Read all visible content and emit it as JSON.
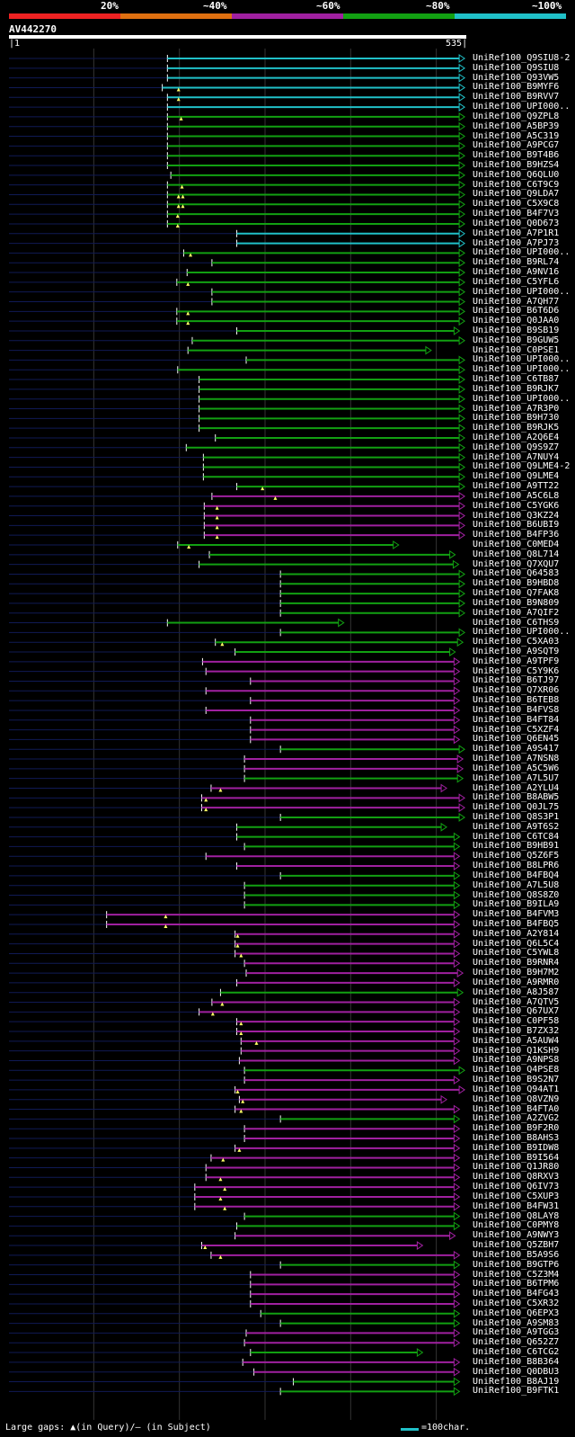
{
  "colors": {
    "red": "#ee2222",
    "orange": "#e07010",
    "purple": "#a020a0",
    "green": "#12a012",
    "cyan": "#20c0c8",
    "navy": "#101a55",
    "gap": "#ffff66"
  },
  "legend": {
    "percent_labels": [
      "20%",
      "~40%",
      "~60%",
      "~80%",
      "~100%"
    ],
    "segment_colors": [
      "#ee2222",
      "#e07010",
      "#a020a0",
      "#12a012",
      "#20c0c8"
    ]
  },
  "query": {
    "name": "AV442270",
    "start": "1",
    "end": "535",
    "length": 535
  },
  "footer": {
    "gap_note": "Large gaps: ▲(in Query)/– (in Subject)",
    "scale_text": "=100char."
  },
  "hits": [
    {
      "label": "UniRef100_Q9SIU8-2",
      "color": "cyan",
      "start": 186,
      "end": 533
    },
    {
      "label": "UniRef100_Q9SIU8",
      "color": "cyan",
      "start": 186,
      "end": 533
    },
    {
      "label": "UniRef100_Q93VW5",
      "color": "cyan",
      "start": 186,
      "end": 533
    },
    {
      "label": "UniRef100_B9MYF6",
      "color": "cyan",
      "start": 180,
      "end": 533,
      "gaps": [
        199
      ]
    },
    {
      "label": "UniRef100_B9RVV7",
      "color": "cyan",
      "start": 186,
      "end": 533,
      "gaps": [
        199
      ]
    },
    {
      "label": "UniRef100_UPI000..",
      "color": "cyan",
      "start": 186,
      "end": 533
    },
    {
      "label": "UniRef100_Q9ZPL8",
      "color": "green",
      "start": 186,
      "end": 533,
      "gaps": [
        202
      ]
    },
    {
      "label": "UniRef100_A5BP39",
      "color": "green",
      "start": 186,
      "end": 533
    },
    {
      "label": "UniRef100_A5C319",
      "color": "green",
      "start": 186,
      "end": 533
    },
    {
      "label": "UniRef100_A9PCG7",
      "color": "green",
      "start": 186,
      "end": 533
    },
    {
      "label": "UniRef100_B9T4B6",
      "color": "green",
      "start": 186,
      "end": 533
    },
    {
      "label": "UniRef100_B9HZS4",
      "color": "green",
      "start": 186,
      "end": 533
    },
    {
      "label": "UniRef100_Q6QLU0",
      "color": "green",
      "start": 190,
      "end": 533
    },
    {
      "label": "UniRef100_C6T9C9",
      "color": "green",
      "start": 186,
      "end": 533,
      "gaps": [
        203
      ]
    },
    {
      "label": "UniRef100_Q9LDA7",
      "color": "green",
      "start": 186,
      "end": 533,
      "gaps": [
        199,
        204
      ]
    },
    {
      "label": "UniRef100_C5X9C8",
      "color": "green",
      "start": 186,
      "end": 533,
      "gaps": [
        199,
        204
      ]
    },
    {
      "label": "UniRef100_B4F7V3",
      "color": "green",
      "start": 186,
      "end": 533,
      "gaps": [
        198
      ]
    },
    {
      "label": "UniRef100_Q0D673",
      "color": "green",
      "start": 186,
      "end": 533,
      "gaps": [
        198
      ]
    },
    {
      "label": "UniRef100_A7P1R1",
      "color": "cyan",
      "start": 267,
      "end": 533
    },
    {
      "label": "UniRef100_A7PJ73",
      "color": "cyan",
      "start": 267,
      "end": 533
    },
    {
      "label": "UniRef100_UPI000..",
      "color": "green",
      "start": 205,
      "end": 533,
      "gaps": [
        213
      ]
    },
    {
      "label": "UniRef100_B9RL74",
      "color": "green",
      "start": 238,
      "end": 533
    },
    {
      "label": "UniRef100_A9NV16",
      "color": "green",
      "start": 209,
      "end": 533
    },
    {
      "label": "UniRef100_C5YFL6",
      "color": "green",
      "start": 197,
      "end": 533,
      "gaps": [
        210
      ]
    },
    {
      "label": "UniRef100_UPI000..",
      "color": "green",
      "start": 238,
      "end": 533
    },
    {
      "label": "UniRef100_A7QH77",
      "color": "green",
      "start": 238,
      "end": 533
    },
    {
      "label": "UniRef100_B6T6D6",
      "color": "green",
      "start": 197,
      "end": 533,
      "gaps": [
        210
      ]
    },
    {
      "label": "UniRef100_Q0JAA0",
      "color": "green",
      "start": 197,
      "end": 533,
      "gaps": [
        210
      ]
    },
    {
      "label": "UniRef100_B9SB19",
      "color": "green",
      "start": 267,
      "end": 527
    },
    {
      "label": "UniRef100_B9GUW5",
      "color": "green",
      "start": 215,
      "end": 533
    },
    {
      "label": "UniRef100_C0PSE1",
      "color": "green",
      "start": 210,
      "end": 494
    },
    {
      "label": "UniRef100_UPI000..",
      "color": "green",
      "start": 278,
      "end": 533
    },
    {
      "label": "UniRef100_UPI000..",
      "color": "green",
      "start": 198,
      "end": 533
    },
    {
      "label": "UniRef100_C6TB87",
      "color": "green",
      "start": 223,
      "end": 533
    },
    {
      "label": "UniRef100_B9RJK7",
      "color": "green",
      "start": 223,
      "end": 533
    },
    {
      "label": "UniRef100_UPI000..",
      "color": "green",
      "start": 223,
      "end": 533
    },
    {
      "label": "UniRef100_A7R3P0",
      "color": "green",
      "start": 223,
      "end": 533
    },
    {
      "label": "UniRef100_B9H730",
      "color": "green",
      "start": 223,
      "end": 533
    },
    {
      "label": "UniRef100_B9RJK5",
      "color": "green",
      "start": 223,
      "end": 533
    },
    {
      "label": "UniRef100_A2Q6E4",
      "color": "green",
      "start": 242,
      "end": 533
    },
    {
      "label": "UniRef100_Q9S9Z7",
      "color": "green",
      "start": 208,
      "end": 533
    },
    {
      "label": "UniRef100_A7NUY4",
      "color": "green",
      "start": 228,
      "end": 533
    },
    {
      "label": "UniRef100_Q9LME4-2",
      "color": "green",
      "start": 228,
      "end": 533
    },
    {
      "label": "UniRef100_Q9LME4",
      "color": "green",
      "start": 228,
      "end": 533
    },
    {
      "label": "UniRef100_A9TT22",
      "color": "green",
      "start": 267,
      "end": 533,
      "gaps": [
        297
      ]
    },
    {
      "label": "UniRef100_A5C6L8",
      "color": "purple",
      "start": 238,
      "end": 533,
      "gaps": [
        312
      ]
    },
    {
      "label": "UniRef100_C5YGK6",
      "color": "purple",
      "start": 229,
      "end": 533,
      "gaps": [
        244
      ]
    },
    {
      "label": "UniRef100_Q3KZ24",
      "color": "purple",
      "start": 229,
      "end": 533,
      "gaps": [
        244
      ]
    },
    {
      "label": "UniRef100_B6UBI9",
      "color": "purple",
      "start": 229,
      "end": 533,
      "gaps": [
        244
      ]
    },
    {
      "label": "UniRef100_B4FP36",
      "color": "purple",
      "start": 229,
      "end": 533,
      "gaps": [
        244
      ]
    },
    {
      "label": "UniRef100_C0MED4",
      "color": "green",
      "start": 198,
      "end": 456,
      "gaps": [
        211
      ]
    },
    {
      "label": "UniRef100_Q8L714",
      "color": "green",
      "start": 235,
      "end": 522
    },
    {
      "label": "UniRef100_Q7XQU7",
      "color": "green",
      "start": 223,
      "end": 526
    },
    {
      "label": "UniRef100_Q64583",
      "color": "green",
      "start": 318,
      "end": 533
    },
    {
      "label": "UniRef100_B9HBD8",
      "color": "green",
      "start": 318,
      "end": 533
    },
    {
      "label": "UniRef100_Q7FAK8",
      "color": "green",
      "start": 318,
      "end": 533
    },
    {
      "label": "UniRef100_B9N809",
      "color": "green",
      "start": 318,
      "end": 533
    },
    {
      "label": "UniRef100_A7QIF2",
      "color": "green",
      "start": 318,
      "end": 533
    },
    {
      "label": "UniRef100_C6THS9",
      "color": "green",
      "start": 186,
      "end": 392
    },
    {
      "label": "UniRef100_UPI000..",
      "color": "green",
      "start": 318,
      "end": 533
    },
    {
      "label": "UniRef100_C5XA03",
      "color": "green",
      "start": 242,
      "end": 531,
      "gaps": [
        250
      ]
    },
    {
      "label": "UniRef100_A9SQT9",
      "color": "green",
      "start": 265,
      "end": 522
    },
    {
      "label": "UniRef100_A9TPF9",
      "color": "purple",
      "start": 227,
      "end": 527
    },
    {
      "label": "UniRef100_C5Y9K6",
      "color": "purple",
      "start": 231,
      "end": 527
    },
    {
      "label": "UniRef100_B6TJ97",
      "color": "purple",
      "start": 283,
      "end": 527
    },
    {
      "label": "UniRef100_Q7XR06",
      "color": "purple",
      "start": 231,
      "end": 527
    },
    {
      "label": "UniRef100_B6TEB8",
      "color": "purple",
      "start": 283,
      "end": 527
    },
    {
      "label": "UniRef100_B4FVS8",
      "color": "purple",
      "start": 231,
      "end": 527
    },
    {
      "label": "UniRef100_B4FT84",
      "color": "purple",
      "start": 283,
      "end": 527
    },
    {
      "label": "UniRef100_C5XZF4",
      "color": "purple",
      "start": 283,
      "end": 527
    },
    {
      "label": "UniRef100_Q6EN45",
      "color": "purple",
      "start": 283,
      "end": 527
    },
    {
      "label": "UniRef100_A9S417",
      "color": "green",
      "start": 318,
      "end": 533
    },
    {
      "label": "UniRef100_A7NSN8",
      "color": "purple",
      "start": 276,
      "end": 531
    },
    {
      "label": "UniRef100_A5C5W6",
      "color": "purple",
      "start": 276,
      "end": 531
    },
    {
      "label": "UniRef100_A7L5U7",
      "color": "green",
      "start": 276,
      "end": 531
    },
    {
      "label": "UniRef100_A2YLU4",
      "color": "purple",
      "start": 237,
      "end": 512,
      "gaps": [
        248
      ]
    },
    {
      "label": "UniRef100_B8ABW5",
      "color": "purple",
      "start": 226,
      "end": 533,
      "gaps": [
        231
      ]
    },
    {
      "label": "UniRef100_Q0JL75",
      "color": "purple",
      "start": 226,
      "end": 533,
      "gaps": [
        231
      ]
    },
    {
      "label": "UniRef100_Q8S3P1",
      "color": "green",
      "start": 318,
      "end": 533
    },
    {
      "label": "UniRef100_A9T6S2",
      "color": "green",
      "start": 267,
      "end": 512
    },
    {
      "label": "UniRef100_C6TC84",
      "color": "green",
      "start": 267,
      "end": 527
    },
    {
      "label": "UniRef100_B9HB91",
      "color": "green",
      "start": 276,
      "end": 527
    },
    {
      "label": "UniRef100_Q5Z6F5",
      "color": "purple",
      "start": 231,
      "end": 527
    },
    {
      "label": "UniRef100_B8LPR6",
      "color": "purple",
      "start": 267,
      "end": 527
    },
    {
      "label": "UniRef100_B4FBQ4",
      "color": "green",
      "start": 318,
      "end": 527
    },
    {
      "label": "UniRef100_A7L5U8",
      "color": "green",
      "start": 276,
      "end": 527
    },
    {
      "label": "UniRef100_Q8S8Z0",
      "color": "green",
      "start": 276,
      "end": 527
    },
    {
      "label": "UniRef100_B9ILA9",
      "color": "green",
      "start": 276,
      "end": 527
    },
    {
      "label": "UniRef100_B4FVM3",
      "color": "purple",
      "start": 115,
      "end": 527,
      "gaps": [
        184
      ]
    },
    {
      "label": "UniRef100_B4FBQ5",
      "color": "purple",
      "start": 115,
      "end": 527,
      "gaps": [
        184
      ]
    },
    {
      "label": "UniRef100_A2Y814",
      "color": "purple",
      "start": 265,
      "end": 527,
      "gaps": [
        268
      ]
    },
    {
      "label": "UniRef100_Q6L5C4",
      "color": "purple",
      "start": 265,
      "end": 527,
      "gaps": [
        268
      ]
    },
    {
      "label": "UniRef100_C5YWL8",
      "color": "purple",
      "start": 265,
      "end": 527,
      "gaps": [
        272
      ]
    },
    {
      "label": "UniRef100_B9RNR4",
      "color": "purple",
      "start": 276,
      "end": 527
    },
    {
      "label": "UniRef100_B9H7M2",
      "color": "purple",
      "start": 278,
      "end": 531
    },
    {
      "label": "UniRef100_A9RMR0",
      "color": "purple",
      "start": 267,
      "end": 527
    },
    {
      "label": "UniRef100_A8J587",
      "color": "green",
      "start": 248,
      "end": 531
    },
    {
      "label": "UniRef100_A7QTV5",
      "color": "purple",
      "start": 238,
      "end": 527,
      "gaps": [
        250
      ]
    },
    {
      "label": "UniRef100_Q67UX7",
      "color": "purple",
      "start": 223,
      "end": 527,
      "gaps": [
        239
      ]
    },
    {
      "label": "UniRef100_C0PF58",
      "color": "purple",
      "start": 267,
      "end": 527,
      "gaps": [
        272
      ]
    },
    {
      "label": "UniRef100_B7ZX32",
      "color": "purple",
      "start": 267,
      "end": 527,
      "gaps": [
        272
      ]
    },
    {
      "label": "UniRef100_A5AUW4",
      "color": "purple",
      "start": 272,
      "end": 527,
      "gaps": [
        290
      ]
    },
    {
      "label": "UniRef100_Q1KSH9",
      "color": "purple",
      "start": 272,
      "end": 527
    },
    {
      "label": "UniRef100_A9NPS8",
      "color": "purple",
      "start": 270,
      "end": 527
    },
    {
      "label": "UniRef100_Q4PSE8",
      "color": "green",
      "start": 276,
      "end": 533
    },
    {
      "label": "UniRef100_B9S2N7",
      "color": "purple",
      "start": 276,
      "end": 527
    },
    {
      "label": "UniRef100_Q94AT1",
      "color": "purple",
      "start": 265,
      "end": 533,
      "gaps": [
        268
      ]
    },
    {
      "label": "UniRef100_Q8VZN9",
      "color": "purple",
      "start": 270,
      "end": 512,
      "gaps": [
        274
      ]
    },
    {
      "label": "UniRef100_B4FTA0",
      "color": "purple",
      "start": 265,
      "end": 527,
      "gaps": [
        272
      ]
    },
    {
      "label": "UniRef100_A2ZVG2",
      "color": "green",
      "start": 318,
      "end": 527
    },
    {
      "label": "UniRef100_B9F2R0",
      "color": "purple",
      "start": 276,
      "end": 527
    },
    {
      "label": "UniRef100_B8AHS3",
      "color": "purple",
      "start": 276,
      "end": 527
    },
    {
      "label": "UniRef100_B9IDW8",
      "color": "purple",
      "start": 265,
      "end": 527,
      "gaps": [
        270
      ]
    },
    {
      "label": "UniRef100_B9I564",
      "color": "purple",
      "start": 237,
      "end": 527,
      "gaps": [
        251
      ]
    },
    {
      "label": "UniRef100_Q1JR80",
      "color": "purple",
      "start": 231,
      "end": 527
    },
    {
      "label": "UniRef100_Q8RXV3",
      "color": "purple",
      "start": 231,
      "end": 527,
      "gaps": [
        248
      ]
    },
    {
      "label": "UniRef100_Q6IV73",
      "color": "purple",
      "start": 218,
      "end": 527,
      "gaps": [
        253
      ]
    },
    {
      "label": "UniRef100_C5XUP3",
      "color": "purple",
      "start": 218,
      "end": 527,
      "gaps": [
        248
      ]
    },
    {
      "label": "UniRef100_B4FW31",
      "color": "purple",
      "start": 218,
      "end": 527,
      "gaps": [
        253
      ]
    },
    {
      "label": "UniRef100_Q8LAY8",
      "color": "green",
      "start": 276,
      "end": 527
    },
    {
      "label": "UniRef100_C0PMY8",
      "color": "green",
      "start": 267,
      "end": 527
    },
    {
      "label": "UniRef100_A9NWY3",
      "color": "purple",
      "start": 265,
      "end": 522
    },
    {
      "label": "UniRef100_Q5ZBH7",
      "color": "purple",
      "start": 226,
      "end": 484,
      "gaps": [
        230
      ]
    },
    {
      "label": "UniRef100_B5A9S6",
      "color": "purple",
      "start": 237,
      "end": 527,
      "gaps": [
        248
      ]
    },
    {
      "label": "UniRef100_B9GTP6",
      "color": "green",
      "start": 318,
      "end": 527
    },
    {
      "label": "UniRef100_C5Z3M4",
      "color": "purple",
      "start": 283,
      "end": 527
    },
    {
      "label": "UniRef100_B6TPM6",
      "color": "purple",
      "start": 283,
      "end": 527
    },
    {
      "label": "UniRef100_B4FG43",
      "color": "purple",
      "start": 283,
      "end": 527
    },
    {
      "label": "UniRef100_C5XR32",
      "color": "purple",
      "start": 283,
      "end": 527
    },
    {
      "label": "UniRef100_Q6EPX3",
      "color": "green",
      "start": 295,
      "end": 527
    },
    {
      "label": "UniRef100_A9SM83",
      "color": "green",
      "start": 318,
      "end": 527
    },
    {
      "label": "UniRef100_A9TGG3",
      "color": "purple",
      "start": 278,
      "end": 527
    },
    {
      "label": "UniRef100_Q652Z7",
      "color": "purple",
      "start": 276,
      "end": 527
    },
    {
      "label": "UniRef100_C6TCG2",
      "color": "green",
      "start": 283,
      "end": 484
    },
    {
      "label": "UniRef100_B8B364",
      "color": "purple",
      "start": 274,
      "end": 527
    },
    {
      "label": "UniRef100_Q0DBU3",
      "color": "purple",
      "start": 287,
      "end": 527
    },
    {
      "label": "UniRef100_B8AJ19",
      "color": "green",
      "start": 333,
      "end": 527
    },
    {
      "label": "UniRef100_B9FTK1",
      "color": "green",
      "start": 318,
      "end": 527
    }
  ]
}
